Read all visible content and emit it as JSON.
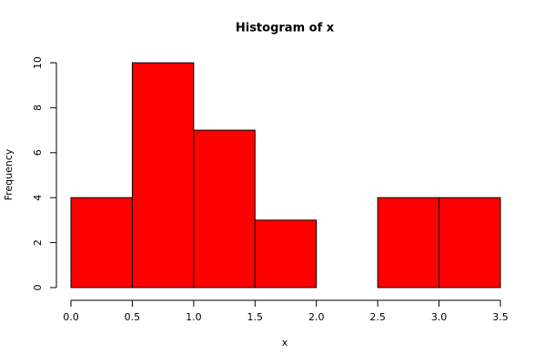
{
  "chart_data": {
    "type": "histogram",
    "title": "Histogram of x",
    "xlabel": "x",
    "ylabel": "Frequency",
    "bins": [
      0,
      0.5,
      1,
      1.5,
      2,
      2.5,
      3,
      3.5
    ],
    "values": [
      4,
      10,
      7,
      3,
      0,
      4,
      4
    ],
    "color": "#ff0000",
    "xlim": [
      0,
      3.5
    ],
    "ylim": [
      0,
      10
    ],
    "xticks": [
      {
        "value": 0,
        "label": "0.0"
      },
      0.5,
      {
        "value": 1,
        "label": "1.0"
      },
      1.5,
      {
        "value": 2,
        "label": "2.0"
      },
      2.5,
      {
        "value": 3,
        "label": "3.0"
      },
      3.5
    ],
    "yticks": [
      0,
      2,
      4,
      6,
      8,
      10
    ]
  }
}
